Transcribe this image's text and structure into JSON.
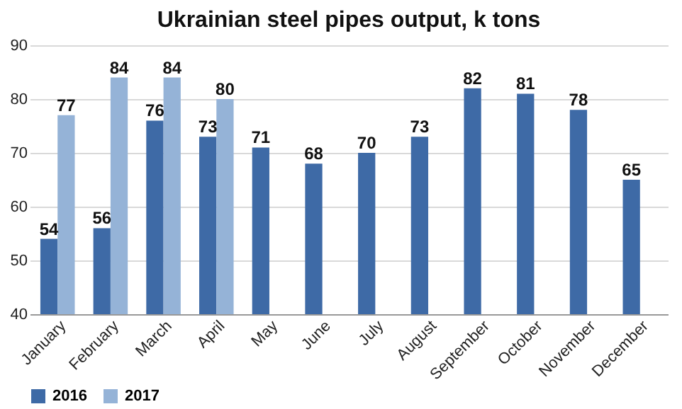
{
  "chart_data": {
    "type": "bar",
    "title": "Ukrainian steel pipes output, k tons",
    "categories": [
      "January",
      "February",
      "March",
      "April",
      "May",
      "June",
      "July",
      "August",
      "September",
      "October",
      "November",
      "December"
    ],
    "series": [
      {
        "name": "2016",
        "color": "#3e6aa6",
        "values": [
          54,
          56,
          76,
          73,
          71,
          68,
          70,
          73,
          82,
          81,
          78,
          65
        ]
      },
      {
        "name": "2017",
        "color": "#95b3d7",
        "values": [
          77,
          84,
          84,
          80,
          null,
          null,
          null,
          null,
          null,
          null,
          null,
          null
        ]
      }
    ],
    "ylim": [
      40,
      90
    ],
    "yticks": [
      40,
      50,
      60,
      70,
      80,
      90
    ],
    "grid": "y",
    "legend": "bottom",
    "data_labels": true
  }
}
